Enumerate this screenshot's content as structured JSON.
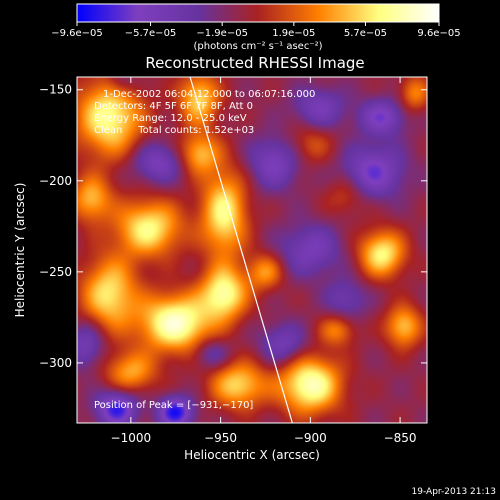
{
  "chart_data": {
    "type": "heatmap",
    "title": "Reconstructed RHESSI Image",
    "xlabel": "Heliocentric X (arcsec)",
    "ylabel": "Heliocentric Y (arcsec)",
    "xlim": [
      -1030,
      -835
    ],
    "ylim": [
      -333,
      -143
    ],
    "x_ticks": [
      {
        "value": -1000,
        "label": "−1000"
      },
      {
        "value": -950,
        "label": "−950"
      },
      {
        "value": -900,
        "label": "−900"
      },
      {
        "value": -850,
        "label": "−850"
      }
    ],
    "y_ticks": [
      {
        "value": -150,
        "label": "−150"
      },
      {
        "value": -200,
        "label": "−200"
      },
      {
        "value": -250,
        "label": "−250"
      },
      {
        "value": -300,
        "label": "−300"
      }
    ],
    "colorbar": {
      "min": -9.6e-05,
      "max": 9.6e-05,
      "ticks": [
        {
          "value": -9.6e-05,
          "label": "−9.6e−05"
        },
        {
          "value": -5.7e-05,
          "label": "−5.7e−05"
        },
        {
          "value": -1.9e-05,
          "label": "−1.9e−05"
        },
        {
          "value": 1.9e-05,
          "label": "1.9e−05"
        },
        {
          "value": 5.7e-05,
          "label": "5.7e−05"
        },
        {
          "value": 9.6e-05,
          "label": "9.6e−05"
        }
      ],
      "unit_label": "(photons cm⁻² s⁻¹ asec⁻²)",
      "colors": [
        "#0000ff",
        "#7f3fbf",
        "#6633a0",
        "#aa2222",
        "#ff7f00",
        "#ffff80",
        "#ffffff"
      ]
    },
    "annotations": [
      "1-Dec-2002 06:04:12.000 to 06:07:16.000",
      "Detectors: 4F 5F 6F 7F 8F, Att 0",
      "Energy Range: 12.0 - 25.0 keV",
      "Clean     Total counts: 1.52e+03"
    ],
    "peak_label": "Position of Peak = [−931,−170]",
    "peak_position": [
      -931,
      -170
    ],
    "limb_line": [
      [
        -967,
        -143
      ],
      [
        -910,
        -333
      ]
    ],
    "sources": [
      {
        "x": -975,
        "y": -278,
        "amp": 1.0,
        "sx": 14,
        "sy": 11
      },
      {
        "x": -900,
        "y": -312,
        "amp": 0.95,
        "sx": 12,
        "sy": 11
      },
      {
        "x": -940,
        "y": -312,
        "amp": 0.7,
        "sx": 11,
        "sy": 9
      },
      {
        "x": -1012,
        "y": -165,
        "amp": 0.85,
        "sx": 13,
        "sy": 15
      },
      {
        "x": -990,
        "y": -226,
        "amp": 0.8,
        "sx": 13,
        "sy": 11
      },
      {
        "x": -1012,
        "y": -262,
        "amp": 0.75,
        "sx": 11,
        "sy": 14
      },
      {
        "x": -948,
        "y": -218,
        "amp": 0.8,
        "sx": 9,
        "sy": 17
      },
      {
        "x": -948,
        "y": -262,
        "amp": 0.85,
        "sx": 9,
        "sy": 10
      },
      {
        "x": -962,
        "y": -155,
        "amp": 0.7,
        "sx": 8,
        "sy": 10
      },
      {
        "x": -962,
        "y": -185,
        "amp": 0.6,
        "sx": 8,
        "sy": 8
      },
      {
        "x": -1000,
        "y": -305,
        "amp": 0.55,
        "sx": 10,
        "sy": 8
      },
      {
        "x": -1022,
        "y": -210,
        "amp": 0.6,
        "sx": 8,
        "sy": 9
      },
      {
        "x": -860,
        "y": -240,
        "amp": 0.8,
        "sx": 9,
        "sy": 9
      },
      {
        "x": -848,
        "y": -280,
        "amp": 0.65,
        "sx": 7,
        "sy": 8
      },
      {
        "x": -925,
        "y": -250,
        "amp": 0.5,
        "sx": 7,
        "sy": 7
      },
      {
        "x": -842,
        "y": -152,
        "amp": 0.45,
        "sx": 6,
        "sy": 7
      },
      {
        "x": -885,
        "y": -282,
        "amp": 0.45,
        "sx": 7,
        "sy": 6
      },
      {
        "x": -900,
        "y": -180,
        "amp": 0.3,
        "sx": 9,
        "sy": 8
      },
      {
        "x": -880,
        "y": -208,
        "amp": 0.28,
        "sx": 8,
        "sy": 8
      },
      {
        "x": -865,
        "y": -195,
        "amp": -0.6,
        "sx": 12,
        "sy": 10
      },
      {
        "x": -900,
        "y": -238,
        "amp": -0.45,
        "sx": 12,
        "sy": 10
      },
      {
        "x": -920,
        "y": -190,
        "amp": -0.5,
        "sx": 10,
        "sy": 10
      },
      {
        "x": -895,
        "y": -160,
        "amp": -0.45,
        "sx": 10,
        "sy": 8
      },
      {
        "x": -985,
        "y": -190,
        "amp": -0.5,
        "sx": 10,
        "sy": 8
      },
      {
        "x": -1008,
        "y": -325,
        "amp": -0.75,
        "sx": 8,
        "sy": 7
      },
      {
        "x": -975,
        "y": -327,
        "amp": -0.8,
        "sx": 7,
        "sy": 6
      },
      {
        "x": -860,
        "y": -165,
        "amp": -0.55,
        "sx": 9,
        "sy": 7
      },
      {
        "x": -915,
        "y": -290,
        "amp": -0.45,
        "sx": 9,
        "sy": 8
      },
      {
        "x": -1025,
        "y": -290,
        "amp": -0.45,
        "sx": 7,
        "sy": 9
      },
      {
        "x": -880,
        "y": -265,
        "amp": -0.35,
        "sx": 8,
        "sy": 8
      },
      {
        "x": -955,
        "y": -295,
        "amp": -0.35,
        "sx": 7,
        "sy": 6
      },
      {
        "x": -1005,
        "y": -145,
        "amp": -0.3,
        "sx": 6,
        "sy": 6
      }
    ]
  },
  "footer": {
    "timestamp": "19-Apr-2013 21:13"
  }
}
